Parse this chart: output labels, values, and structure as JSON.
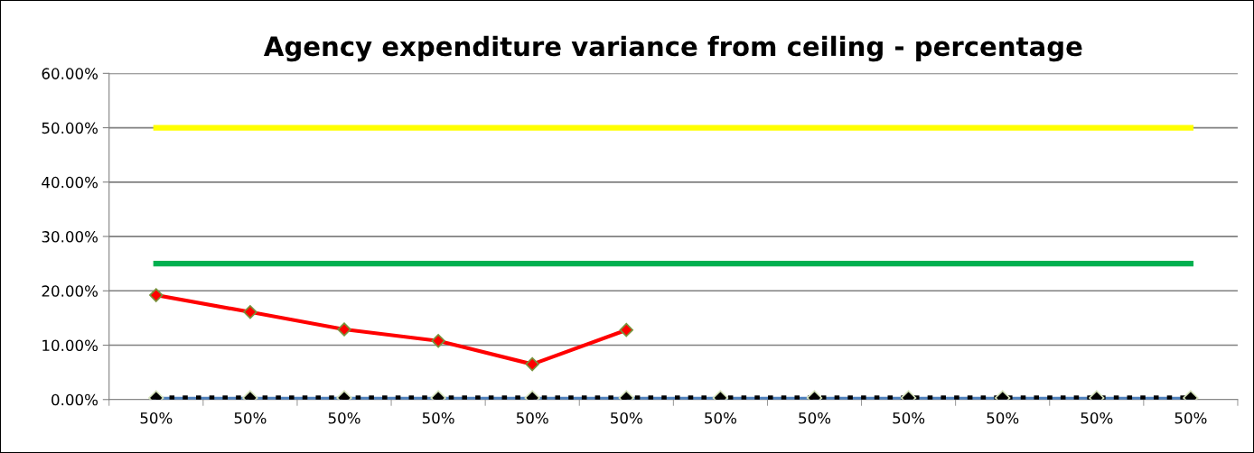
{
  "chart_data": {
    "type": "line",
    "title": "Agency expenditure variance from ceiling - percentage",
    "categories": [
      "50%",
      "50%",
      "50%",
      "50%",
      "50%",
      "50%",
      "50%",
      "50%",
      "50%",
      "50%",
      "50%",
      "50%"
    ],
    "series": [
      {
        "color": "#ffff00",
        "marker": "none",
        "line_style": "solid",
        "values": [
          50,
          50,
          50,
          50,
          50,
          50,
          50,
          50,
          50,
          50,
          50,
          50
        ]
      },
      {
        "color": "#00b050",
        "marker": "none",
        "line_style": "solid",
        "values": [
          25,
          25,
          25,
          25,
          25,
          25,
          25,
          25,
          25,
          25,
          25,
          25
        ]
      },
      {
        "color": "#4f81bd",
        "marker": "none",
        "line_style": "solid",
        "values": [
          0,
          0,
          0,
          0,
          0,
          0,
          0,
          0,
          0,
          0,
          0,
          0
        ]
      },
      {
        "color": "#ff0000",
        "marker": "diamond",
        "line_style": "solid",
        "values": [
          19.2,
          16.1,
          12.9,
          10.8,
          6.5,
          12.8,
          null,
          null,
          null,
          null,
          null,
          null
        ]
      },
      {
        "color": "#000000",
        "marker": "diamond",
        "line_style": "dotted",
        "values": [
          0.3,
          0.3,
          0.3,
          0.3,
          0.3,
          0.3,
          0.3,
          0.3,
          0.3,
          0.3,
          0.3,
          0.3
        ]
      }
    ],
    "ylim": [
      0,
      60
    ],
    "yticks": [
      {
        "value": 0,
        "label": "0.00%"
      },
      {
        "value": 10,
        "label": "10.00%"
      },
      {
        "value": 20,
        "label": "20.00%"
      },
      {
        "value": 30,
        "label": "30.00%"
      },
      {
        "value": 40,
        "label": "40.00%"
      },
      {
        "value": 50,
        "label": "50.00%"
      },
      {
        "value": 60,
        "label": "60.00%"
      }
    ],
    "grid": "y"
  }
}
